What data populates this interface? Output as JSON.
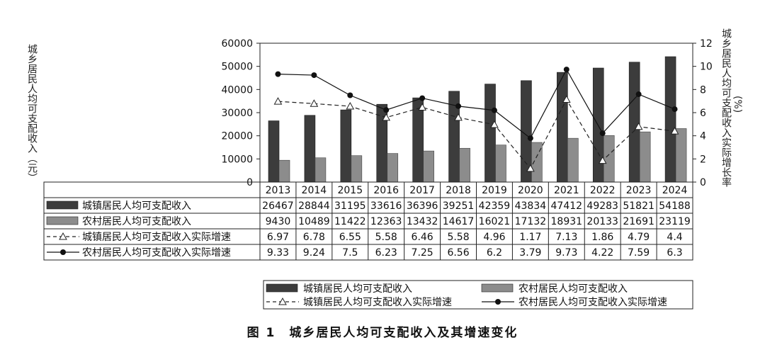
{
  "chart_data": {
    "type": "bar",
    "categories": [
      "2013",
      "2014",
      "2015",
      "2016",
      "2017",
      "2018",
      "2019",
      "2020",
      "2021",
      "2022",
      "2023",
      "2024"
    ],
    "left_axis": {
      "label": "城乡居民人均可支配收入（元）",
      "min": 0,
      "max": 60000,
      "step": 10000,
      "ticks": [
        "0",
        "10000",
        "20000",
        "30000",
        "40000",
        "50000",
        "60000"
      ]
    },
    "right_axis": {
      "label_line1": "城乡居民人均可支配收入实际增长率",
      "label_line2": "(%)",
      "min": 0,
      "max": 12,
      "step": 2,
      "ticks": [
        "0",
        "2",
        "4",
        "6",
        "8",
        "10",
        "12"
      ]
    },
    "series": [
      {
        "name": "城镇居民人均可支配收入",
        "kind": "bar",
        "axis": "left",
        "color": "#3c3c3c",
        "values": [
          26467,
          28844,
          31195,
          33616,
          36396,
          39251,
          42359,
          43834,
          47412,
          49283,
          51821,
          54188
        ],
        "labels": [
          "26467",
          "28844",
          "31195",
          "33616",
          "36396",
          "39251",
          "42359",
          "43834",
          "47412",
          "49283",
          "51821",
          "54188"
        ]
      },
      {
        "name": "农村居民人均可支配收入",
        "kind": "bar",
        "axis": "left",
        "color": "#8c8c8c",
        "values": [
          9430,
          10489,
          11422,
          12363,
          13432,
          14617,
          16021,
          17132,
          18931,
          20133,
          21691,
          23119
        ],
        "labels": [
          "9430",
          "10489",
          "11422",
          "12363",
          "13432",
          "14617",
          "16021",
          "17132",
          "18931",
          "20133",
          "21691",
          "23119"
        ]
      },
      {
        "name": "城镇居民人均可支配收入实际增速",
        "kind": "line-dashed-triangle",
        "axis": "right",
        "color": "#222222",
        "values": [
          6.97,
          6.78,
          6.55,
          5.58,
          6.46,
          5.58,
          4.96,
          1.17,
          7.13,
          1.86,
          4.79,
          4.4
        ],
        "labels": [
          "6.97",
          "6.78",
          "6.55",
          "5.58",
          "6.46",
          "5.58",
          "4.96",
          "1.17",
          "7.13",
          "1.86",
          "4.79",
          "4.4"
        ]
      },
      {
        "name": "农村居民人均可支配收入实际增速",
        "kind": "line-solid-dot",
        "axis": "right",
        "color": "#111111",
        "values": [
          9.33,
          9.24,
          7.5,
          6.23,
          7.25,
          6.56,
          6.2,
          3.79,
          9.73,
          4.22,
          7.59,
          6.3
        ],
        "labels": [
          "9.33",
          "9.24",
          "7.5",
          "6.23",
          "7.25",
          "6.56",
          "6.2",
          "3.79",
          "9.73",
          "4.22",
          "7.59",
          "6.3"
        ]
      }
    ],
    "grid": false,
    "legend": "bottom",
    "caption": "图 1　城乡居民人均可支配收入及其增速变化"
  }
}
